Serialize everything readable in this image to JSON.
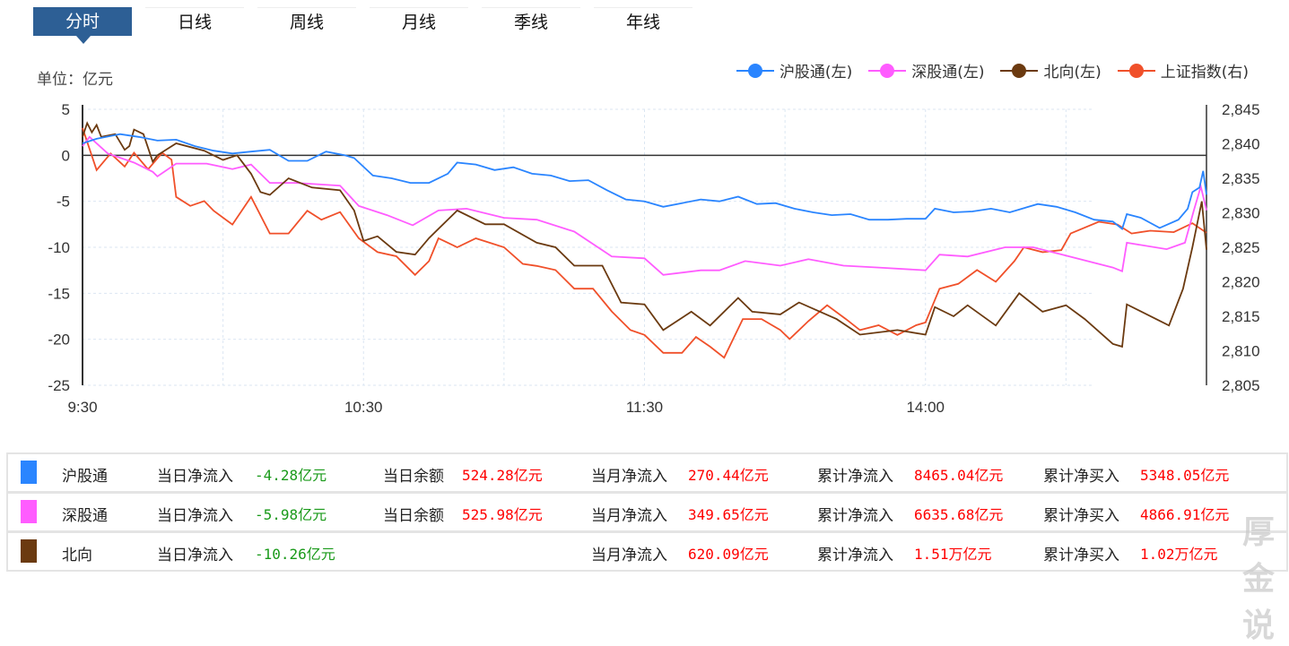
{
  "tabs": [
    "分时",
    "日线",
    "周线",
    "月线",
    "季线",
    "年线"
  ],
  "active_tab": 0,
  "unit_label": "单位：亿元",
  "watermark": "厚金说",
  "colors": {
    "hgt": "#2a85ff",
    "sgt": "#ff5cff",
    "north": "#6b3a10",
    "sh": "#f0502a",
    "tab": "#2d5f95"
  },
  "chart_data": {
    "type": "line",
    "x_unit": "minutes since 9:30 (trading minutes)",
    "xticks": [
      {
        "m": 0,
        "label": "9:30"
      },
      {
        "m": 60,
        "label": "10:30"
      },
      {
        "m": 120,
        "label": "11:30"
      },
      {
        "m": 180,
        "label": "14:00"
      }
    ],
    "xlim": [
      0,
      240
    ],
    "left_axis": {
      "ylim": [
        -25,
        5
      ],
      "ticks": [
        "5",
        "0",
        "-5",
        "-10",
        "-15",
        "-20",
        "-25"
      ],
      "tick_values": [
        5,
        0,
        -5,
        -10,
        -15,
        -20,
        -25
      ]
    },
    "right_axis": {
      "ylim": [
        2805,
        2845
      ],
      "ticks": [
        "2,845",
        "2,840",
        "2,835",
        "2,830",
        "2,825",
        "2,820",
        "2,815",
        "2,810",
        "2,805"
      ],
      "tick_values": [
        2845,
        2840,
        2835,
        2830,
        2825,
        2820,
        2815,
        2810,
        2805
      ]
    },
    "legend": "top-right",
    "grid": true,
    "series": [
      {
        "name": "沪股通(左)",
        "axis": "left",
        "color_key": "hgt",
        "points": [
          [
            0,
            1.3
          ],
          [
            3,
            1.8
          ],
          [
            8,
            2.3
          ],
          [
            12,
            2.0
          ],
          [
            16,
            1.6
          ],
          [
            20,
            1.7
          ],
          [
            24,
            1.0
          ],
          [
            28,
            0.5
          ],
          [
            32,
            0.2
          ],
          [
            36,
            0.4
          ],
          [
            40,
            0.6
          ],
          [
            44,
            -0.6
          ],
          [
            48,
            -0.6
          ],
          [
            52,
            0.4
          ],
          [
            56,
            0.0
          ],
          [
            58,
            -0.3
          ],
          [
            62,
            -2.2
          ],
          [
            66,
            -2.5
          ],
          [
            70,
            -3.0
          ],
          [
            74,
            -3.0
          ],
          [
            78,
            -2.0
          ],
          [
            80,
            -0.8
          ],
          [
            84,
            -1.0
          ],
          [
            88,
            -1.6
          ],
          [
            92,
            -1.3
          ],
          [
            96,
            -2.0
          ],
          [
            100,
            -2.2
          ],
          [
            104,
            -2.8
          ],
          [
            108,
            -2.7
          ],
          [
            112,
            -3.8
          ],
          [
            116,
            -4.8
          ],
          [
            120,
            -5.0
          ],
          [
            124,
            -5.6
          ],
          [
            128,
            -5.2
          ],
          [
            132,
            -4.8
          ],
          [
            136,
            -5.0
          ],
          [
            140,
            -4.5
          ],
          [
            144,
            -5.3
          ],
          [
            148,
            -5.2
          ],
          [
            152,
            -5.8
          ],
          [
            156,
            -6.2
          ],
          [
            160,
            -6.5
          ],
          [
            164,
            -6.4
          ],
          [
            168,
            -7.0
          ],
          [
            172,
            -7.0
          ],
          [
            176,
            -6.9
          ],
          [
            180,
            -6.9
          ],
          [
            182,
            -5.8
          ],
          [
            186,
            -6.2
          ],
          [
            190,
            -6.1
          ],
          [
            194,
            -5.8
          ],
          [
            198,
            -6.2
          ],
          [
            200,
            -5.9
          ],
          [
            204,
            -5.3
          ],
          [
            208,
            -5.6
          ],
          [
            212,
            -6.2
          ],
          [
            216,
            -7.0
          ],
          [
            220,
            -7.2
          ],
          [
            222,
            -8.0
          ],
          [
            223,
            -6.4
          ],
          [
            226,
            -6.8
          ],
          [
            230,
            -7.9
          ],
          [
            234,
            -7.0
          ],
          [
            236,
            -5.8
          ],
          [
            237,
            -4.0
          ],
          [
            238.5,
            -3.5
          ],
          [
            239.3,
            -1.7
          ],
          [
            240,
            -4.28
          ]
        ]
      },
      {
        "name": "深股通(左)",
        "axis": "left",
        "color_key": "sgt",
        "points": [
          [
            0,
            1.0
          ],
          [
            1.5,
            2.0
          ],
          [
            5.4,
            0.2
          ],
          [
            11,
            -0.8
          ],
          [
            15,
            -1.8
          ],
          [
            16,
            -2.3
          ],
          [
            20,
            -0.9
          ],
          [
            26.5,
            -0.9
          ],
          [
            32,
            -1.5
          ],
          [
            36,
            -1.0
          ],
          [
            40,
            -3.0
          ],
          [
            45.6,
            -3.0
          ],
          [
            55,
            -3.3
          ],
          [
            59,
            -5.5
          ],
          [
            65,
            -6.5
          ],
          [
            70.5,
            -7.6
          ],
          [
            76,
            -6.0
          ],
          [
            82,
            -5.8
          ],
          [
            90,
            -6.8
          ],
          [
            97,
            -7.0
          ],
          [
            105,
            -8.3
          ],
          [
            113,
            -11
          ],
          [
            120,
            -11.2
          ],
          [
            124,
            -13
          ],
          [
            132,
            -12.5
          ],
          [
            136,
            -12.5
          ],
          [
            141.5,
            -11.5
          ],
          [
            149,
            -12
          ],
          [
            155,
            -11.3
          ],
          [
            162.5,
            -12.0
          ],
          [
            170,
            -12.2
          ],
          [
            180,
            -12.5
          ],
          [
            183,
            -10.8
          ],
          [
            189,
            -11
          ],
          [
            197,
            -10
          ],
          [
            203,
            -10
          ],
          [
            208.5,
            -10.7
          ],
          [
            220,
            -12.2
          ],
          [
            222,
            -12.6
          ],
          [
            223,
            -9.5
          ],
          [
            231.5,
            -10.2
          ],
          [
            235.4,
            -9.5
          ],
          [
            237.3,
            -6
          ],
          [
            238.8,
            -3.4
          ],
          [
            240,
            -5.98
          ]
        ]
      },
      {
        "name": "北向(左)",
        "axis": "left",
        "color_key": "north",
        "points": [
          [
            0,
            2.0
          ],
          [
            1,
            3.5
          ],
          [
            2,
            2.5
          ],
          [
            3,
            3.3
          ],
          [
            4,
            2.0
          ],
          [
            7,
            2.3
          ],
          [
            9,
            0.6
          ],
          [
            10,
            1.0
          ],
          [
            11,
            2.8
          ],
          [
            13,
            2.3
          ],
          [
            15,
            -0.7
          ],
          [
            16,
            0
          ],
          [
            20,
            1.3
          ],
          [
            26,
            0.5
          ],
          [
            30,
            -0.5
          ],
          [
            33,
            0
          ],
          [
            36,
            -2
          ],
          [
            38,
            -4
          ],
          [
            40,
            -4.3
          ],
          [
            44,
            -2.5
          ],
          [
            49,
            -3.5
          ],
          [
            55,
            -3.8
          ],
          [
            58,
            -6
          ],
          [
            60,
            -9.3
          ],
          [
            63,
            -8.8
          ],
          [
            67,
            -10.5
          ],
          [
            71,
            -10.8
          ],
          [
            74,
            -9
          ],
          [
            80,
            -6
          ],
          [
            86,
            -7.5
          ],
          [
            90,
            -7.5
          ],
          [
            97,
            -9.5
          ],
          [
            101,
            -10
          ],
          [
            105,
            -12
          ],
          [
            111,
            -12
          ],
          [
            115,
            -16
          ],
          [
            120,
            -16.2
          ],
          [
            124,
            -19
          ],
          [
            130,
            -17
          ],
          [
            134,
            -18.5
          ],
          [
            140,
            -15.5
          ],
          [
            143,
            -17
          ],
          [
            149,
            -17.3
          ],
          [
            153,
            -16
          ],
          [
            161,
            -17.8
          ],
          [
            166,
            -19.5
          ],
          [
            174,
            -19
          ],
          [
            180,
            -19.5
          ],
          [
            182,
            -16.5
          ],
          [
            186,
            -17.5
          ],
          [
            189,
            -16.3
          ],
          [
            195,
            -18.5
          ],
          [
            200,
            -15
          ],
          [
            205,
            -17
          ],
          [
            210,
            -16.3
          ],
          [
            214,
            -17.8
          ],
          [
            220,
            -20.5
          ],
          [
            222,
            -20.8
          ],
          [
            223,
            -16.2
          ],
          [
            230,
            -18
          ],
          [
            232,
            -18.5
          ],
          [
            235,
            -14.5
          ],
          [
            237,
            -10
          ],
          [
            239,
            -5
          ],
          [
            240,
            -10.26
          ]
        ]
      },
      {
        "name": "上证指数(右)",
        "axis": "right",
        "color_key": "sh",
        "points": [
          [
            0,
            2842.3
          ],
          [
            3,
            2836.2
          ],
          [
            6,
            2838.6
          ],
          [
            9,
            2836.7
          ],
          [
            11,
            2838.7
          ],
          [
            14,
            2836.3
          ],
          [
            17,
            2838.7
          ],
          [
            19,
            2837.7
          ],
          [
            20,
            2832.3
          ],
          [
            23,
            2831.0
          ],
          [
            26,
            2831.7
          ],
          [
            28,
            2830.3
          ],
          [
            32,
            2828.3
          ],
          [
            36,
            2832.3
          ],
          [
            40,
            2827.0
          ],
          [
            44,
            2827.0
          ],
          [
            48,
            2830.3
          ],
          [
            51,
            2829.0
          ],
          [
            55,
            2830.1
          ],
          [
            59,
            2826.3
          ],
          [
            63,
            2824.3
          ],
          [
            67,
            2823.7
          ],
          [
            71,
            2821.0
          ],
          [
            74,
            2823.0
          ],
          [
            76,
            2826.3
          ],
          [
            80,
            2825.0
          ],
          [
            84,
            2826.3
          ],
          [
            90,
            2825.0
          ],
          [
            94,
            2822.6
          ],
          [
            97,
            2822.3
          ],
          [
            101,
            2821.7
          ],
          [
            105,
            2819.0
          ],
          [
            109,
            2819.0
          ],
          [
            113,
            2815.7
          ],
          [
            117,
            2813.0
          ],
          [
            120,
            2812.3
          ],
          [
            124,
            2809.7
          ],
          [
            128,
            2809.7
          ],
          [
            131,
            2812.0
          ],
          [
            134,
            2810.6
          ],
          [
            137,
            2809.0
          ],
          [
            141,
            2814.6
          ],
          [
            145,
            2814.6
          ],
          [
            149,
            2813.0
          ],
          [
            151,
            2811.7
          ],
          [
            155,
            2814.3
          ],
          [
            159,
            2816.6
          ],
          [
            163,
            2814.6
          ],
          [
            166,
            2813.0
          ],
          [
            170,
            2813.7
          ],
          [
            174,
            2812.3
          ],
          [
            178,
            2813.7
          ],
          [
            180,
            2814.1
          ],
          [
            183,
            2819.0
          ],
          [
            187,
            2819.7
          ],
          [
            191,
            2821.7
          ],
          [
            195,
            2820.0
          ],
          [
            199,
            2823.0
          ],
          [
            201,
            2825.0
          ],
          [
            205,
            2824.3
          ],
          [
            209,
            2824.6
          ],
          [
            211,
            2827.0
          ],
          [
            217,
            2828.7
          ],
          [
            221,
            2828.3
          ],
          [
            224,
            2827.0
          ],
          [
            228,
            2827.4
          ],
          [
            233,
            2827.2
          ],
          [
            237,
            2828.5
          ],
          [
            240,
            2827.1
          ]
        ]
      }
    ]
  },
  "table": {
    "rows": [
      {
        "name": "沪股通",
        "color_key": "hgt",
        "c1_label": "当日净流入",
        "c1_value": "-4.28亿元",
        "c2_label": "当日余额",
        "c2_value": "524.28亿元",
        "c3_label": "当月净流入",
        "c3_value": "270.44亿元",
        "c4_label": "累计净流入",
        "c4_value": "8465.04亿元",
        "c5_label": "累计净买入",
        "c5_value": "5348.05亿元"
      },
      {
        "name": "深股通",
        "color_key": "sgt",
        "c1_label": "当日净流入",
        "c1_value": "-5.98亿元",
        "c2_label": "当日余额",
        "c2_value": "525.98亿元",
        "c3_label": "当月净流入",
        "c3_value": "349.65亿元",
        "c4_label": "累计净流入",
        "c4_value": "6635.68亿元",
        "c5_label": "累计净买入",
        "c5_value": "4866.91亿元"
      },
      {
        "name": "北向",
        "color_key": "north",
        "c1_label": "当日净流入",
        "c1_value": "-10.26亿元",
        "c2_label": "",
        "c2_value": "",
        "c3_label": "当月净流入",
        "c3_value": "620.09亿元",
        "c4_label": "累计净流入",
        "c4_value": "1.51万亿元",
        "c5_label": "累计净买入",
        "c5_value": "1.02万亿元"
      }
    ]
  }
}
